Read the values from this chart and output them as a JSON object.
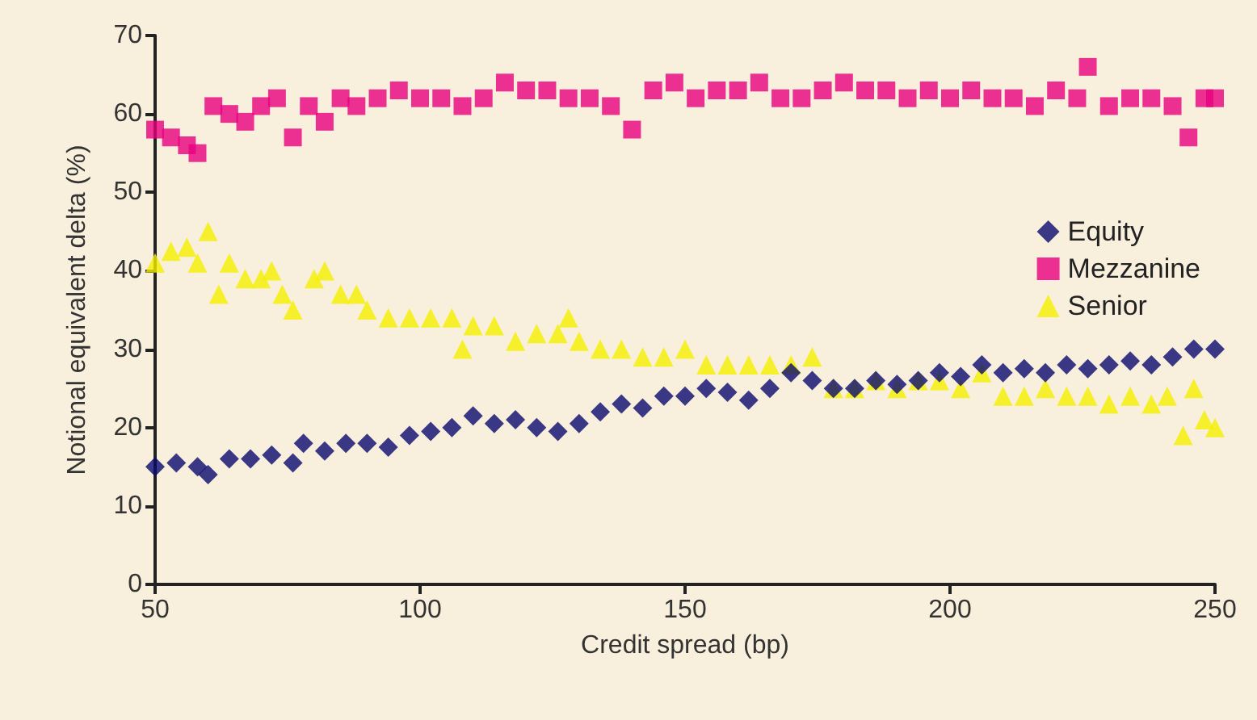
{
  "chart_data": {
    "type": "scatter",
    "xlabel": "Credit spread (bp)",
    "ylabel": "Notional equivalent delta (%)",
    "xlim": [
      50,
      250
    ],
    "xticks": [
      50,
      100,
      150,
      200,
      250
    ],
    "ylim": [
      0,
      70
    ],
    "yticks": [
      0,
      10,
      20,
      30,
      40,
      50,
      60,
      70
    ],
    "grid": false,
    "legend": "right",
    "series": [
      {
        "name": "Equity",
        "color": "#0a0a6e",
        "marker": "diamond",
        "x": [
          50,
          54,
          58,
          60,
          64,
          68,
          72,
          76,
          78,
          82,
          86,
          90,
          94,
          98,
          102,
          106,
          110,
          114,
          118,
          122,
          126,
          130,
          134,
          138,
          142,
          146,
          150,
          154,
          158,
          162,
          166,
          170,
          174,
          178,
          182,
          186,
          190,
          194,
          198,
          202,
          206,
          210,
          214,
          218,
          222,
          226,
          230,
          234,
          238,
          242,
          246,
          250
        ],
        "values": [
          15,
          15.5,
          15,
          14,
          16,
          16,
          16.5,
          15.5,
          18,
          17,
          18,
          18,
          17.5,
          19,
          19.5,
          20,
          21.5,
          20.5,
          21,
          20,
          19.5,
          20.5,
          22,
          23,
          22.5,
          24,
          24,
          25,
          24.5,
          23.5,
          25,
          27,
          26,
          25,
          25,
          26,
          25.5,
          26,
          27,
          26.5,
          28,
          27,
          27.5,
          27,
          28,
          27.5,
          28,
          28.5,
          28,
          29,
          30,
          30
        ]
      },
      {
        "name": "Mezzanine",
        "color": "#e8007f",
        "marker": "square",
        "x": [
          50,
          53,
          56,
          58,
          61,
          64,
          67,
          70,
          73,
          76,
          79,
          82,
          85,
          88,
          92,
          96,
          100,
          104,
          108,
          112,
          116,
          120,
          124,
          128,
          132,
          136,
          140,
          144,
          148,
          152,
          156,
          160,
          164,
          168,
          172,
          176,
          180,
          184,
          188,
          192,
          196,
          200,
          204,
          208,
          212,
          216,
          220,
          224,
          226,
          230,
          234,
          238,
          242,
          245,
          248,
          250
        ],
        "values": [
          58,
          57,
          56,
          55,
          61,
          60,
          59,
          61,
          62,
          57,
          61,
          59,
          62,
          61,
          62,
          63,
          62,
          62,
          61,
          62,
          64,
          63,
          63,
          62,
          62,
          61,
          58,
          63,
          64,
          62,
          63,
          63,
          64,
          62,
          62,
          63,
          64,
          63,
          63,
          62,
          63,
          62,
          63,
          62,
          62,
          61,
          63,
          62,
          66,
          61,
          62,
          62,
          61,
          57,
          62,
          62
        ]
      },
      {
        "name": "Senior",
        "color": "#f5f000",
        "marker": "triangle",
        "x": [
          50,
          53,
          56,
          58,
          60,
          62,
          64,
          67,
          70,
          72,
          74,
          76,
          80,
          82,
          85,
          88,
          90,
          94,
          98,
          102,
          106,
          108,
          110,
          114,
          118,
          122,
          126,
          128,
          130,
          134,
          138,
          142,
          146,
          150,
          154,
          158,
          162,
          166,
          170,
          174,
          178,
          182,
          186,
          190,
          194,
          198,
          202,
          206,
          210,
          214,
          218,
          222,
          226,
          230,
          234,
          238,
          241,
          244,
          246,
          248,
          250
        ],
        "values": [
          41,
          42.5,
          43,
          41,
          45,
          37,
          41,
          39,
          39,
          40,
          37,
          35,
          39,
          40,
          37,
          37,
          35,
          34,
          34,
          34,
          34,
          30,
          33,
          33,
          31,
          32,
          32,
          34,
          31,
          30,
          30,
          29,
          29,
          30,
          28,
          28,
          28,
          28,
          28,
          29,
          25,
          25,
          26,
          25,
          26,
          26,
          25,
          27,
          24,
          24,
          25,
          24,
          24,
          23,
          24,
          23,
          24,
          19,
          25,
          21,
          20
        ]
      }
    ]
  }
}
